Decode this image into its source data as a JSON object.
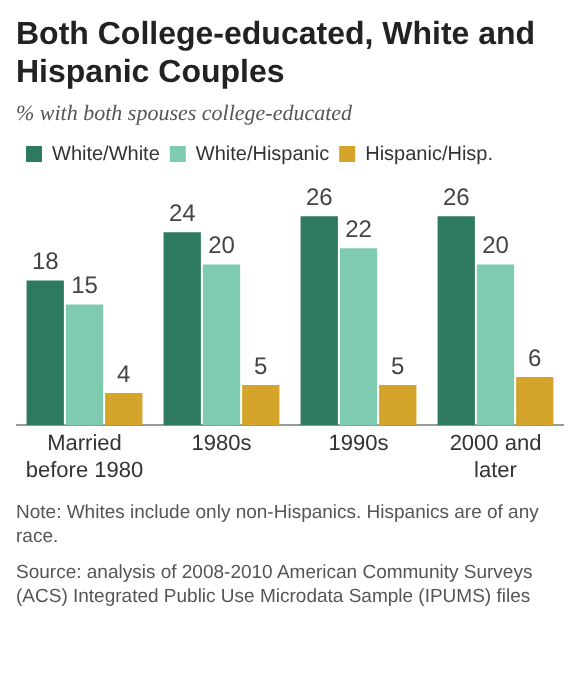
{
  "chart_data": {
    "type": "bar",
    "title": "Both College-educated, White and Hispanic Couples",
    "subtitle": "% with both spouses college-educated",
    "categories": [
      "Married before 1980",
      "1980s",
      "1990s",
      "2000 and later"
    ],
    "series": [
      {
        "name": "White/White",
        "color": "#2e7a5f",
        "values": [
          18,
          24,
          26,
          26
        ]
      },
      {
        "name": "White/Hispanic",
        "color": "#7fcbb0",
        "values": [
          15,
          20,
          22,
          20
        ]
      },
      {
        "name": "Hispanic/Hisp.",
        "color": "#d4a52a",
        "values": [
          4,
          5,
          5,
          6
        ]
      }
    ],
    "data_labels": true,
    "legend": "top",
    "grid": false,
    "annotations": [
      "Note: Whites include only non-Hispanics. Hispanics are of any race.",
      "Source: analysis of 2008-2010 American Community Surveys (ACS) Integrated Public Use Microdata Sample (IPUMS) files"
    ]
  }
}
